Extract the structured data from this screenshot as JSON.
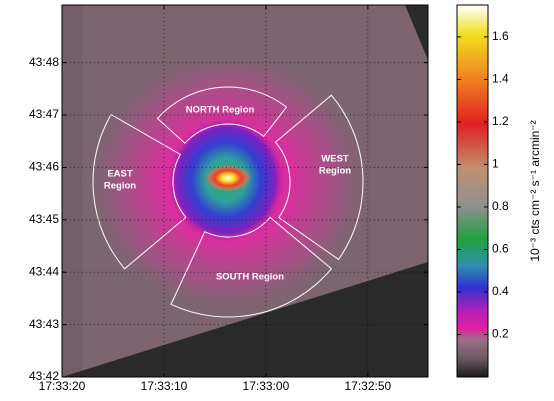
{
  "chart_data": {
    "type": "image",
    "xlim": [
      20,
      -15.9
    ],
    "xticks": [
      {
        "value": 20,
        "label": "17:33:20"
      },
      {
        "value": 10,
        "label": "17:33:10"
      },
      {
        "value": 0,
        "label": "17:33:00"
      },
      {
        "value": -10,
        "label": "17:32:50"
      }
    ],
    "ylim": [
      42,
      49.1
    ],
    "yticks": [
      {
        "value": 42,
        "label": "43:42"
      },
      {
        "value": 43,
        "label": "43:43"
      },
      {
        "value": 44,
        "label": "43:44"
      },
      {
        "value": 45,
        "label": "43:45"
      },
      {
        "value": 46,
        "label": "43:46"
      },
      {
        "value": 47,
        "label": "43:47"
      },
      {
        "value": 48,
        "label": "43:48"
      }
    ],
    "grid": true,
    "colorbar": {
      "label": "10⁻³ cts cm⁻² s⁻¹ arcmin⁻²",
      "lim": [
        0,
        1.75
      ],
      "ticks": [
        0.2,
        0.4,
        0.6,
        0.8,
        1,
        1.2,
        1.4,
        1.6
      ]
    },
    "annotations": [
      {
        "lines": [
          "NORTH Region"
        ]
      },
      {
        "lines": [
          "WEST",
          "Region"
        ]
      },
      {
        "lines": [
          "SOUTH Region"
        ]
      },
      {
        "lines": [
          "EAST",
          "Region"
        ]
      }
    ]
  }
}
